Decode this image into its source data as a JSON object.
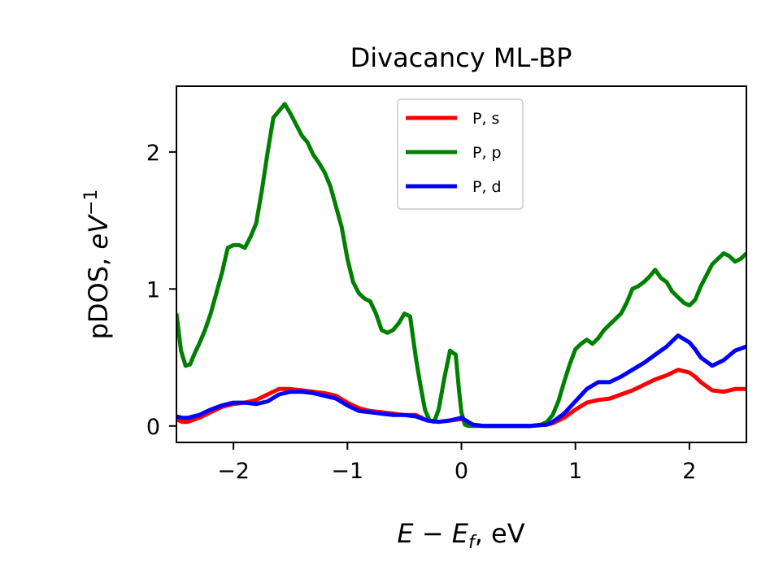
{
  "chart_data": {
    "type": "line",
    "title": "Divacancy ML-BP",
    "xlabel": "E − E_f, eV",
    "ylabel": "pDOS, eV⁻¹",
    "xlabel_parts": {
      "E": "E",
      "minus": " − ",
      "Ef_main": "E",
      "Ef_sub": "f",
      "rest": ", eV"
    },
    "ylabel_parts": {
      "prefix": "pDOS, ",
      "eV": "eV",
      "sup": "−1"
    },
    "xlim": [
      -2.5,
      2.5
    ],
    "ylim": [
      -0.12,
      2.48
    ],
    "xticks": [
      -2,
      -1,
      0,
      1,
      2
    ],
    "xtick_labels": [
      "−2",
      "−1",
      "0",
      "1",
      "2"
    ],
    "yticks": [
      0,
      1,
      2
    ],
    "ytick_labels": [
      "0",
      "1",
      "2"
    ],
    "grid": false,
    "legend_position": "top-center",
    "series": [
      {
        "name": "P, s",
        "color": "#ff0000",
        "x": [
          -2.5,
          -2.45,
          -2.4,
          -2.3,
          -2.2,
          -2.1,
          -2.0,
          -1.9,
          -1.8,
          -1.7,
          -1.6,
          -1.5,
          -1.4,
          -1.3,
          -1.2,
          -1.1,
          -1.0,
          -0.9,
          -0.8,
          -0.7,
          -0.6,
          -0.5,
          -0.4,
          -0.3,
          -0.2,
          -0.1,
          0.0,
          0.1,
          0.2,
          0.4,
          0.6,
          0.75,
          0.8,
          0.9,
          1.0,
          1.1,
          1.2,
          1.3,
          1.4,
          1.5,
          1.6,
          1.7,
          1.8,
          1.9,
          2.0,
          2.05,
          2.1,
          2.2,
          2.3,
          2.4,
          2.5
        ],
        "y": [
          0.05,
          0.03,
          0.03,
          0.06,
          0.1,
          0.14,
          0.16,
          0.17,
          0.19,
          0.23,
          0.27,
          0.27,
          0.26,
          0.25,
          0.24,
          0.22,
          0.17,
          0.13,
          0.11,
          0.1,
          0.09,
          0.08,
          0.08,
          0.04,
          0.03,
          0.04,
          0.05,
          0.01,
          0.0,
          0.0,
          0.0,
          0.01,
          0.02,
          0.06,
          0.12,
          0.17,
          0.19,
          0.2,
          0.23,
          0.26,
          0.3,
          0.34,
          0.37,
          0.41,
          0.39,
          0.36,
          0.32,
          0.26,
          0.25,
          0.27,
          0.27
        ]
      },
      {
        "name": "P, p",
        "color": "#008000",
        "x": [
          -2.5,
          -2.46,
          -2.42,
          -2.38,
          -2.34,
          -2.3,
          -2.25,
          -2.2,
          -2.15,
          -2.1,
          -2.05,
          -2.0,
          -1.95,
          -1.9,
          -1.85,
          -1.8,
          -1.75,
          -1.7,
          -1.65,
          -1.6,
          -1.55,
          -1.5,
          -1.45,
          -1.4,
          -1.35,
          -1.3,
          -1.25,
          -1.2,
          -1.15,
          -1.1,
          -1.05,
          -1.0,
          -0.95,
          -0.9,
          -0.85,
          -0.8,
          -0.75,
          -0.7,
          -0.65,
          -0.6,
          -0.55,
          -0.5,
          -0.45,
          -0.4,
          -0.36,
          -0.32,
          -0.28,
          -0.24,
          -0.2,
          -0.15,
          -0.1,
          -0.05,
          -0.02,
          0.0,
          0.03,
          0.06,
          0.1,
          0.15,
          0.2,
          0.4,
          0.6,
          0.7,
          0.75,
          0.8,
          0.85,
          0.9,
          0.95,
          1.0,
          1.05,
          1.1,
          1.15,
          1.2,
          1.25,
          1.3,
          1.35,
          1.4,
          1.45,
          1.5,
          1.55,
          1.6,
          1.65,
          1.7,
          1.75,
          1.8,
          1.85,
          1.9,
          1.95,
          2.0,
          2.05,
          2.1,
          2.15,
          2.2,
          2.25,
          2.3,
          2.35,
          2.4,
          2.45,
          2.5
        ],
        "y": [
          0.82,
          0.55,
          0.44,
          0.45,
          0.53,
          0.6,
          0.7,
          0.82,
          0.97,
          1.12,
          1.3,
          1.32,
          1.32,
          1.3,
          1.38,
          1.48,
          1.72,
          2.0,
          2.25,
          2.3,
          2.35,
          2.28,
          2.2,
          2.12,
          2.07,
          1.98,
          1.92,
          1.85,
          1.75,
          1.6,
          1.45,
          1.22,
          1.05,
          0.97,
          0.93,
          0.91,
          0.82,
          0.7,
          0.68,
          0.7,
          0.75,
          0.82,
          0.8,
          0.5,
          0.3,
          0.12,
          0.04,
          0.03,
          0.12,
          0.35,
          0.55,
          0.52,
          0.25,
          0.1,
          0.01,
          0.0,
          0.0,
          0.0,
          0.0,
          0.0,
          0.0,
          0.01,
          0.03,
          0.08,
          0.18,
          0.32,
          0.45,
          0.56,
          0.6,
          0.63,
          0.6,
          0.64,
          0.7,
          0.74,
          0.78,
          0.82,
          0.9,
          1.0,
          1.02,
          1.05,
          1.09,
          1.14,
          1.08,
          1.05,
          0.98,
          0.94,
          0.9,
          0.88,
          0.92,
          1.02,
          1.1,
          1.18,
          1.22,
          1.26,
          1.24,
          1.2,
          1.22,
          1.26
        ]
      },
      {
        "name": "P, d",
        "color": "#0000ff",
        "x": [
          -2.5,
          -2.45,
          -2.4,
          -2.3,
          -2.2,
          -2.1,
          -2.0,
          -1.9,
          -1.8,
          -1.7,
          -1.6,
          -1.5,
          -1.4,
          -1.3,
          -1.2,
          -1.1,
          -1.0,
          -0.9,
          -0.8,
          -0.7,
          -0.6,
          -0.5,
          -0.4,
          -0.3,
          -0.2,
          -0.1,
          0.0,
          0.1,
          0.2,
          0.4,
          0.6,
          0.75,
          0.8,
          0.9,
          1.0,
          1.1,
          1.2,
          1.3,
          1.4,
          1.5,
          1.6,
          1.7,
          1.8,
          1.9,
          2.0,
          2.05,
          2.1,
          2.2,
          2.3,
          2.4,
          2.5
        ],
        "y": [
          0.07,
          0.06,
          0.06,
          0.08,
          0.12,
          0.15,
          0.17,
          0.17,
          0.16,
          0.18,
          0.23,
          0.25,
          0.25,
          0.24,
          0.22,
          0.2,
          0.15,
          0.11,
          0.1,
          0.09,
          0.08,
          0.08,
          0.07,
          0.04,
          0.03,
          0.04,
          0.06,
          0.01,
          0.0,
          0.0,
          0.0,
          0.01,
          0.03,
          0.09,
          0.18,
          0.27,
          0.32,
          0.32,
          0.36,
          0.41,
          0.46,
          0.52,
          0.58,
          0.66,
          0.61,
          0.56,
          0.5,
          0.44,
          0.48,
          0.55,
          0.58
        ]
      }
    ]
  }
}
